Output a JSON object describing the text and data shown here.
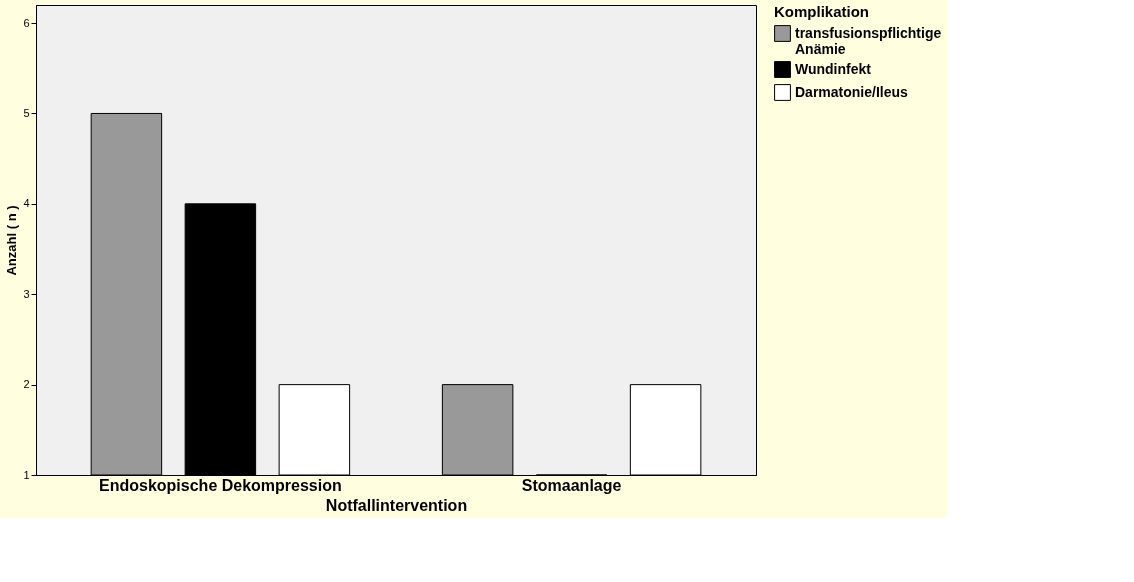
{
  "chart_data": {
    "type": "bar",
    "xlabel": "Notfallintervention",
    "ylabel": "Anzahl ( n )",
    "legend_title": "Komplikation",
    "legend": "top right",
    "categories": [
      "Endoskopische Dekompression",
      "Stomaanlage"
    ],
    "series": [
      {
        "name": "transfusionspflichtige Anämie",
        "color": "#999999",
        "values": [
          5,
          2
        ]
      },
      {
        "name": "Wundinfekt",
        "color": "#000000",
        "values": [
          4,
          1
        ]
      },
      {
        "name": "Darmatonie/Ileus",
        "color": "#ffffff",
        "values": [
          2,
          2
        ]
      }
    ],
    "ylim": [
      1,
      6.2
    ],
    "yticks": [
      1,
      2,
      3,
      4,
      5,
      6
    ],
    "grid": false
  }
}
